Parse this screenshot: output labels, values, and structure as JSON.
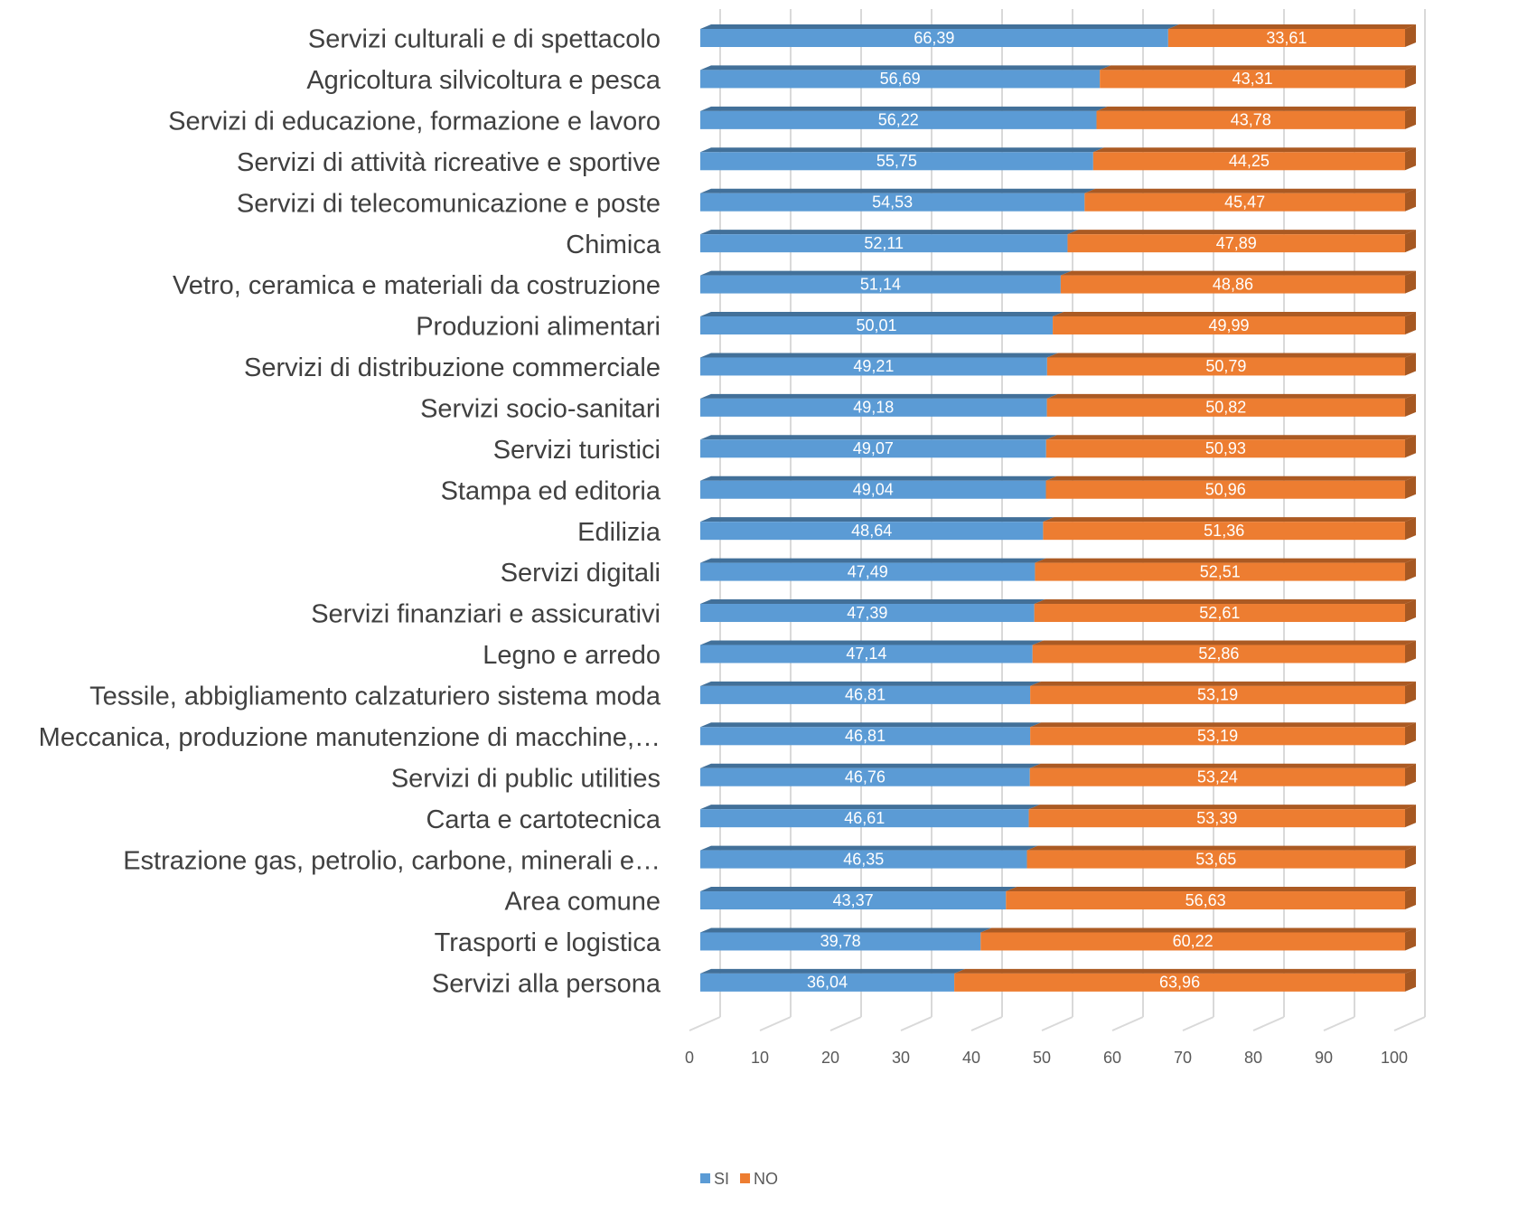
{
  "chart_data": {
    "type": "bar",
    "orientation": "horizontal",
    "stacked": true,
    "categories": [
      "Servizi culturali e di spettacolo",
      "Agricoltura silvicoltura e pesca",
      "Servizi di educazione, formazione e lavoro",
      "Servizi di attività ricreative e sportive",
      "Servizi di telecomunicazione e poste",
      "Chimica",
      "Vetro, ceramica e materiali da costruzione",
      "Produzioni alimentari",
      "Servizi di distribuzione commerciale",
      "Servizi socio-sanitari",
      "Servizi turistici",
      "Stampa ed editoria",
      "Edilizia",
      "Servizi digitali",
      "Servizi finanziari e assicurativi",
      "Legno e arredo",
      "Tessile, abbigliamento calzaturiero sistema moda",
      "Meccanica, produzione manutenzione di macchine,…",
      "Servizi di public utilities",
      "Carta e cartotecnica",
      "Estrazione gas, petrolio, carbone, minerali e…",
      "Area comune",
      "Trasporti e logistica",
      "Servizi alla persona"
    ],
    "series": [
      {
        "name": "SI",
        "color": "#5b9bd5",
        "values": [
          66.39,
          56.69,
          56.22,
          55.75,
          54.53,
          52.11,
          51.14,
          50.01,
          49.21,
          49.18,
          49.07,
          49.04,
          48.64,
          47.49,
          47.39,
          47.14,
          46.81,
          46.81,
          46.76,
          46.61,
          46.35,
          43.37,
          39.78,
          36.04
        ],
        "value_labels": [
          "66,39",
          "56,69",
          "56,22",
          "55,75",
          "54,53",
          "52,11",
          "51,14",
          "50,01",
          "49,21",
          "49,18",
          "49,07",
          "49,04",
          "48,64",
          "47,49",
          "47,39",
          "47,14",
          "46,81",
          "46,81",
          "46,76",
          "46,61",
          "46,35",
          "43,37",
          "39,78",
          "36,04"
        ]
      },
      {
        "name": "NO",
        "color": "#ed7d31",
        "values": [
          33.61,
          43.31,
          43.78,
          44.25,
          45.47,
          47.89,
          48.86,
          49.99,
          50.79,
          50.82,
          50.93,
          50.96,
          51.36,
          52.51,
          52.61,
          52.86,
          53.19,
          53.19,
          53.24,
          53.39,
          53.65,
          56.63,
          60.22,
          63.96
        ],
        "value_labels": [
          "33,61",
          "43,31",
          "43,78",
          "44,25",
          "45,47",
          "47,89",
          "48,86",
          "49,99",
          "50,79",
          "50,82",
          "50,93",
          "50,96",
          "51,36",
          "52,51",
          "52,61",
          "52,86",
          "53,19",
          "53,19",
          "53,24",
          "53,39",
          "53,65",
          "56,63",
          "60,22",
          "63,96"
        ]
      }
    ],
    "xlim": [
      0,
      100
    ],
    "xticks": [
      0,
      10,
      20,
      30,
      40,
      50,
      60,
      70,
      80,
      90,
      100
    ],
    "grid": true,
    "legend": "bottom"
  }
}
